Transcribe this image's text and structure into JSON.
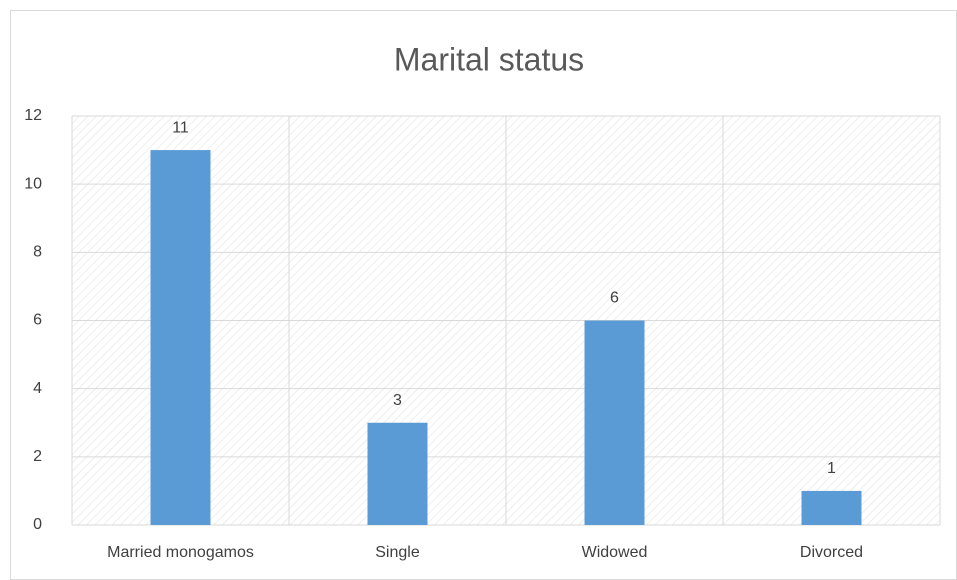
{
  "chart_data": {
    "type": "bar",
    "title": "Marital status",
    "categories": [
      "Married monogamos",
      "Single",
      "Widowed",
      "Divorced"
    ],
    "values": [
      11,
      3,
      6,
      1
    ],
    "color": "#5b9bd5",
    "ylim": [
      0,
      12
    ],
    "yticks": [
      0,
      2,
      4,
      6,
      8,
      10,
      12
    ],
    "grid": true
  }
}
